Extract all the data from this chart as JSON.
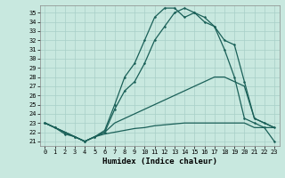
{
  "xlabel": "Humidex (Indice chaleur)",
  "bg_color": "#c8e8df",
  "grid_color": "#a8cfc8",
  "line_color": "#1a6058",
  "xlim": [
    -0.5,
    23.5
  ],
  "ylim": [
    20.5,
    35.8
  ],
  "xticks": [
    0,
    1,
    2,
    3,
    4,
    5,
    6,
    7,
    8,
    9,
    10,
    11,
    12,
    13,
    14,
    15,
    16,
    17,
    18,
    19,
    20,
    21,
    22,
    23
  ],
  "yticks": [
    21,
    22,
    23,
    24,
    25,
    26,
    27,
    28,
    29,
    30,
    31,
    32,
    33,
    34,
    35
  ],
  "series": [
    {
      "x": [
        0,
        1,
        2,
        3,
        4,
        5,
        6,
        7,
        8,
        9,
        10,
        11,
        12,
        13,
        14,
        15,
        16,
        17,
        18,
        19,
        20,
        21,
        22,
        23
      ],
      "y": [
        23.0,
        22.5,
        21.8,
        21.5,
        21.0,
        21.5,
        22.2,
        25.0,
        28.0,
        29.5,
        32.0,
        34.5,
        35.5,
        35.5,
        34.5,
        35.0,
        34.0,
        33.5,
        31.0,
        28.0,
        23.5,
        23.0,
        22.5,
        21.0
      ],
      "marker": true
    },
    {
      "x": [
        0,
        1,
        2,
        3,
        4,
        5,
        6,
        7,
        8,
        9,
        10,
        11,
        12,
        13,
        14,
        15,
        16,
        17,
        18,
        19,
        20,
        21,
        22,
        23
      ],
      "y": [
        23.0,
        22.5,
        22.0,
        21.5,
        21.0,
        21.5,
        22.0,
        24.5,
        26.5,
        27.5,
        29.5,
        32.0,
        33.5,
        35.0,
        35.5,
        35.0,
        34.5,
        33.5,
        32.0,
        31.5,
        27.5,
        23.5,
        23.0,
        22.5
      ],
      "marker": true
    },
    {
      "x": [
        0,
        1,
        2,
        3,
        4,
        5,
        6,
        7,
        8,
        9,
        10,
        11,
        12,
        13,
        14,
        15,
        16,
        17,
        18,
        19,
        20,
        21,
        22,
        23
      ],
      "y": [
        23.0,
        22.5,
        22.0,
        21.5,
        21.0,
        21.5,
        22.0,
        23.0,
        23.5,
        24.0,
        24.5,
        25.0,
        25.5,
        26.0,
        26.5,
        27.0,
        27.5,
        28.0,
        28.0,
        27.5,
        27.0,
        23.5,
        23.0,
        22.5
      ],
      "marker": false
    },
    {
      "x": [
        0,
        1,
        2,
        3,
        4,
        5,
        6,
        7,
        8,
        9,
        10,
        11,
        12,
        13,
        14,
        15,
        16,
        17,
        18,
        19,
        20,
        21,
        22,
        23
      ],
      "y": [
        23.0,
        22.5,
        22.0,
        21.5,
        21.0,
        21.5,
        21.8,
        22.0,
        22.2,
        22.4,
        22.5,
        22.7,
        22.8,
        22.9,
        23.0,
        23.0,
        23.0,
        23.0,
        23.0,
        23.0,
        23.0,
        22.5,
        22.5,
        22.5
      ],
      "marker": false
    }
  ]
}
